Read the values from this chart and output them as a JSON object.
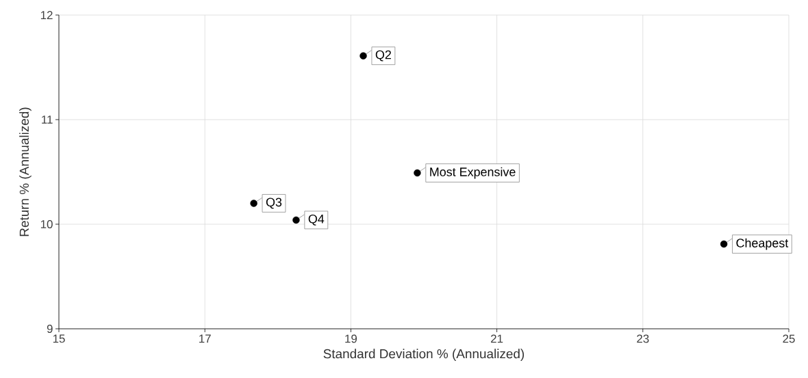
{
  "chart_data": {
    "type": "scatter",
    "xlabel": "Standard Deviation % (Annualized)",
    "ylabel": "Return % (Annualized)",
    "series": [
      {
        "color": "#000000",
        "x": [
          19.17,
          19.91,
          17.67,
          18.25,
          24.11
        ],
        "values": [
          11.61,
          10.49,
          10.2,
          10.04,
          9.81
        ]
      }
    ],
    "annotations": [
      {
        "text": "Q2",
        "x": 19.17,
        "y": 11.61
      },
      {
        "text": "Most Expensive",
        "x": 19.91,
        "y": 10.49
      },
      {
        "text": "Q3",
        "x": 17.67,
        "y": 10.2
      },
      {
        "text": "Q4",
        "x": 18.25,
        "y": 10.04
      },
      {
        "text": "Cheapest",
        "x": 24.11,
        "y": 9.81
      }
    ],
    "xlim": [
      15,
      25
    ],
    "xticks": [
      15,
      17,
      19,
      21,
      23,
      25
    ],
    "ylim": [
      9,
      12
    ],
    "yticks": [
      9,
      10,
      11,
      12
    ],
    "grid": true,
    "marker": "circle"
  }
}
